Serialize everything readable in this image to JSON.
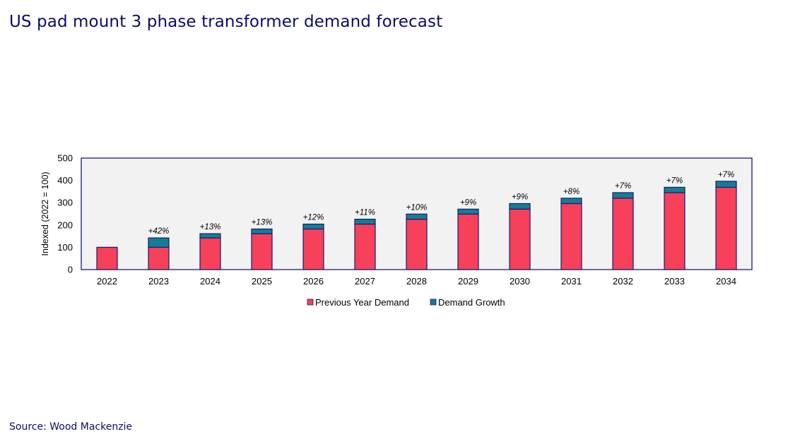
{
  "title": "US pad mount 3 phase transformer demand forecast",
  "source": "Source: Wood Mackenzie",
  "colors": {
    "previous": "#f7405a",
    "growth": "#137e96",
    "plot_bg": "#f2f2f2",
    "frame": "#1b1b7a",
    "bar_edge": "#1b1b6a"
  },
  "chart_data": {
    "type": "bar",
    "stacked": true,
    "categories": [
      "2022",
      "2023",
      "2024",
      "2025",
      "2026",
      "2027",
      "2028",
      "2029",
      "2030",
      "2031",
      "2032",
      "2033",
      "2034"
    ],
    "series": [
      {
        "name": "Previous Year Demand",
        "values": [
          100,
          100,
          142,
          161,
          182,
          204,
          226,
          249,
          271,
          296,
          320,
          345,
          369
        ]
      },
      {
        "name": "Demand Growth",
        "values": [
          0,
          42,
          19,
          21,
          22,
          22,
          23,
          22,
          25,
          24,
          25,
          24,
          27
        ]
      }
    ],
    "data_labels": [
      "",
      "+42%",
      "+13%",
      "+13%",
      "+12%",
      "+11%",
      "+10%",
      "+9%",
      "+9%",
      "+8%",
      "+7%",
      "+7%",
      "+7%"
    ],
    "xlabel": "",
    "ylabel": "Indexed (2022 = 100)",
    "ylim": [
      0,
      500
    ],
    "yticks": [
      0,
      100,
      200,
      300,
      400,
      500
    ],
    "legend_position": "bottom",
    "grid": false
  }
}
